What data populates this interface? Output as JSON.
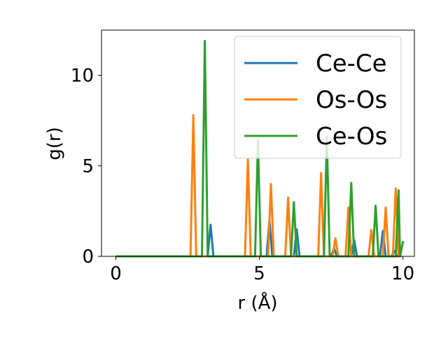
{
  "chart_data": {
    "type": "line",
    "xlabel": "r (Å)",
    "ylabel": "g(r)",
    "xlim": [
      -0.5,
      10.4
    ],
    "ylim": [
      0,
      12.5
    ],
    "x_ticks": [
      "0",
      "5",
      "10"
    ],
    "y_ticks": [
      "0",
      "5",
      "10"
    ],
    "grid": false,
    "legend_position": "upper-right",
    "series": [
      {
        "name": "Ce-Ce",
        "color": "#1f77b4",
        "peaks": [
          [
            3.3,
            1.75
          ],
          [
            5.35,
            2.0
          ],
          [
            6.3,
            1.5
          ],
          [
            7.6,
            0.45
          ],
          [
            8.3,
            0.9
          ],
          [
            9.3,
            1.4
          ],
          [
            9.7,
            0.3
          ]
        ]
      },
      {
        "name": "Os-Os",
        "color": "#ff7f0e",
        "peaks": [
          [
            2.7,
            7.8
          ],
          [
            4.6,
            5.4
          ],
          [
            5.4,
            4.0
          ],
          [
            6.0,
            3.25
          ],
          [
            7.15,
            4.6
          ],
          [
            7.65,
            1.0
          ],
          [
            8.1,
            2.7
          ],
          [
            8.9,
            1.45
          ],
          [
            9.4,
            2.7
          ],
          [
            9.75,
            3.75
          ]
        ]
      },
      {
        "name": "Ce-Os",
        "color": "#2ca02c",
        "peaks": [
          [
            3.1,
            11.9
          ],
          [
            4.95,
            6.45
          ],
          [
            6.2,
            3.0
          ],
          [
            7.35,
            6.6
          ],
          [
            8.2,
            4.05
          ],
          [
            9.05,
            2.8
          ],
          [
            9.85,
            3.65
          ],
          [
            10.0,
            0.8
          ]
        ]
      }
    ]
  }
}
